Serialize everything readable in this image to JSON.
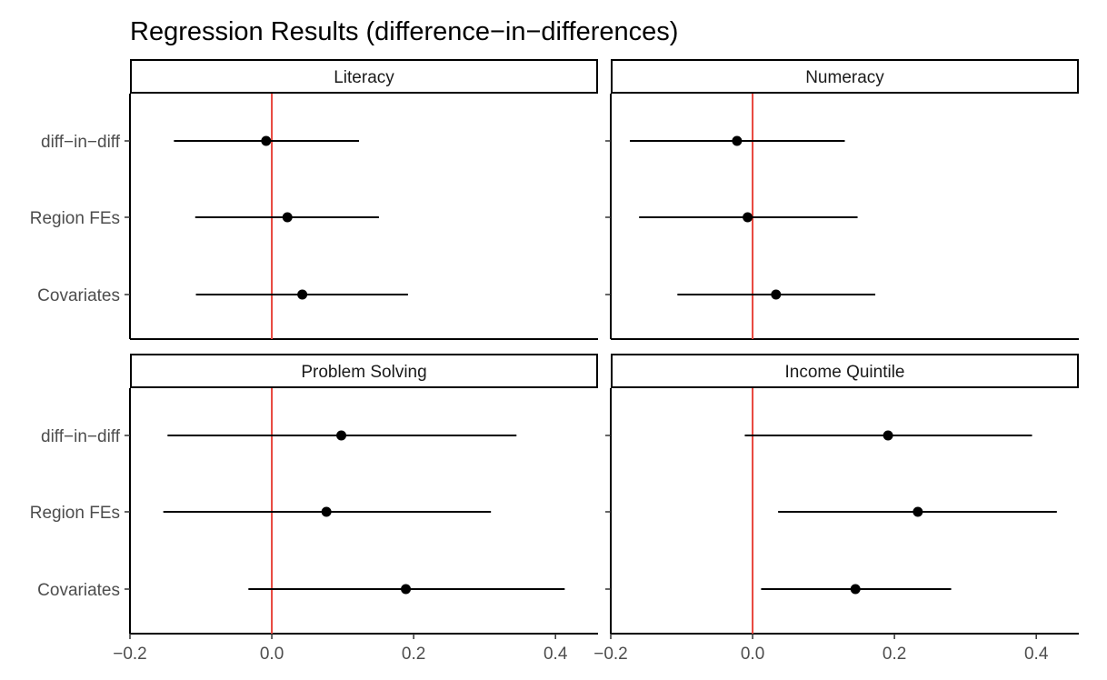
{
  "chart_data": {
    "type": "forest",
    "title": "Regression Results (difference−in−differences)",
    "xlim": [
      -0.2,
      0.46
    ],
    "x_ticks": [
      -0.2,
      0.0,
      0.2,
      0.4
    ],
    "x_tick_labels": [
      "−0.2",
      "0.0",
      "0.2",
      "0.4"
    ],
    "y_categories": [
      "diff−in−diff",
      "Region FEs",
      "Covariates"
    ],
    "reference_line": {
      "x": 0,
      "color": "#e8453c"
    },
    "grid": false,
    "point_color": "#000000",
    "panels": [
      {
        "name": "Literacy",
        "estimates": [
          {
            "label": "diff−in−diff",
            "estimate": -0.008,
            "low": -0.138,
            "high": 0.123
          },
          {
            "label": "Region FEs",
            "estimate": 0.022,
            "low": -0.108,
            "high": 0.151
          },
          {
            "label": "Covariates",
            "estimate": 0.043,
            "low": -0.107,
            "high": 0.192
          }
        ]
      },
      {
        "name": "Numeracy",
        "estimates": [
          {
            "label": "diff−in−diff",
            "estimate": -0.022,
            "low": -0.173,
            "high": 0.13
          },
          {
            "label": "Region FEs",
            "estimate": -0.007,
            "low": -0.16,
            "high": 0.148
          },
          {
            "label": "Covariates",
            "estimate": 0.033,
            "low": -0.106,
            "high": 0.173
          }
        ]
      },
      {
        "name": "Problem Solving",
        "estimates": [
          {
            "label": "diff−in−diff",
            "estimate": 0.098,
            "low": -0.147,
            "high": 0.345
          },
          {
            "label": "Region FEs",
            "estimate": 0.077,
            "low": -0.153,
            "high": 0.309
          },
          {
            "label": "Covariates",
            "estimate": 0.189,
            "low": -0.033,
            "high": 0.413
          }
        ]
      },
      {
        "name": "Income Quintile",
        "estimates": [
          {
            "label": "diff−in−diff",
            "estimate": 0.191,
            "low": -0.011,
            "high": 0.394
          },
          {
            "label": "Region FEs",
            "estimate": 0.233,
            "low": 0.036,
            "high": 0.429
          },
          {
            "label": "Covariates",
            "estimate": 0.145,
            "low": 0.012,
            "high": 0.28
          }
        ]
      }
    ]
  }
}
